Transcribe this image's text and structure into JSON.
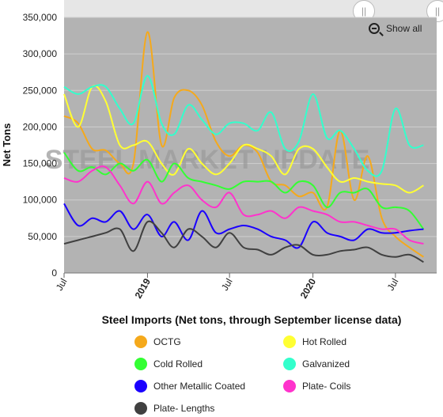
{
  "chart_data": {
    "type": "line",
    "title": "Steel Imports (Net tons, through September license data)",
    "ylabel": "Net Tons",
    "xlabel": "",
    "x_range": [
      "2018-07-01",
      "2020-09-30"
    ],
    "ylim": [
      0,
      350000
    ],
    "y_ticks": [
      0,
      50000,
      100000,
      150000,
      200000,
      250000,
      300000,
      350000
    ],
    "y_tick_labels": [
      "0",
      "50,000",
      "100,000",
      "150,000",
      "200,000",
      "250,000",
      "300,000",
      "350,000"
    ],
    "x_ticks": [
      {
        "date": "2018-07-01",
        "label": "Jul",
        "bold": false
      },
      {
        "date": "2019-01-01",
        "label": "2019",
        "bold": true
      },
      {
        "date": "2019-07-01",
        "label": "Jul",
        "bold": false
      },
      {
        "date": "2020-01-01",
        "label": "2020",
        "bold": true
      },
      {
        "date": "2020-07-01",
        "label": "Jul",
        "bold": false
      }
    ],
    "grid": true,
    "plot_background": "#b3b3b3",
    "watermark": "STEEL MARKET UPDATE",
    "legend_position": "bottom",
    "x": [
      "2018-07-01",
      "2018-08-01",
      "2018-09-01",
      "2018-10-01",
      "2018-11-01",
      "2018-12-01",
      "2019-01-01",
      "2019-02-01",
      "2019-03-01",
      "2019-04-01",
      "2019-05-01",
      "2019-06-01",
      "2019-07-01",
      "2019-08-01",
      "2019-09-01",
      "2019-10-01",
      "2019-11-01",
      "2019-12-01",
      "2020-01-01",
      "2020-02-01",
      "2020-03-01",
      "2020-04-01",
      "2020-05-01",
      "2020-06-01",
      "2020-07-01",
      "2020-08-01",
      "2020-09-01"
    ],
    "series": [
      {
        "name": "OCTG",
        "color": "#f5a91b",
        "values": [
          215000,
          205000,
          170000,
          168000,
          150000,
          150000,
          330000,
          175000,
          240000,
          250000,
          230000,
          180000,
          160000,
          175000,
          165000,
          125000,
          120000,
          105000,
          110000,
          90000,
          195000,
          100000,
          160000,
          75000,
          50000,
          35000,
          22000
        ]
      },
      {
        "name": "Hot Rolled",
        "color": "#ffff33",
        "values": [
          245000,
          200000,
          255000,
          235000,
          175000,
          175000,
          180000,
          150000,
          135000,
          170000,
          150000,
          135000,
          150000,
          175000,
          170000,
          160000,
          135000,
          170000,
          170000,
          145000,
          125000,
          130000,
          125000,
          122000,
          120000,
          110000,
          120000
        ]
      },
      {
        "name": "Cold Rolled",
        "color": "#33ff33",
        "values": [
          165000,
          140000,
          145000,
          135000,
          150000,
          140000,
          155000,
          125000,
          150000,
          130000,
          125000,
          120000,
          115000,
          125000,
          125000,
          125000,
          110000,
          125000,
          120000,
          90000,
          110000,
          110000,
          115000,
          90000,
          90000,
          85000,
          60000
        ]
      },
      {
        "name": "Galvanized",
        "color": "#33ffcc",
        "values": [
          255000,
          245000,
          255000,
          255000,
          225000,
          205000,
          270000,
          205000,
          190000,
          230000,
          210000,
          190000,
          205000,
          205000,
          195000,
          220000,
          170000,
          180000,
          245000,
          185000,
          195000,
          170000,
          140000,
          140000,
          225000,
          175000,
          175000
        ]
      },
      {
        "name": "Other Metallic Coated",
        "color": "#1a00ff",
        "values": [
          95000,
          65000,
          75000,
          70000,
          85000,
          60000,
          80000,
          50000,
          70000,
          45000,
          85000,
          55000,
          60000,
          65000,
          60000,
          50000,
          45000,
          35000,
          70000,
          55000,
          50000,
          45000,
          60000,
          55000,
          55000,
          58000,
          60000
        ]
      },
      {
        "name": "Plate- Coils",
        "color": "#ff33cc",
        "values": [
          130000,
          125000,
          140000,
          145000,
          120000,
          95000,
          125000,
          95000,
          110000,
          120000,
          100000,
          90000,
          110000,
          80000,
          80000,
          85000,
          75000,
          90000,
          85000,
          80000,
          70000,
          70000,
          65000,
          60000,
          60000,
          45000,
          40000
        ]
      },
      {
        "name": "Plate- Lengths",
        "color": "#404040",
        "values": [
          40000,
          45000,
          50000,
          55000,
          60000,
          30000,
          70000,
          55000,
          35000,
          60000,
          50000,
          35000,
          55000,
          35000,
          32000,
          25000,
          35000,
          38000,
          25000,
          25000,
          30000,
          32000,
          35000,
          25000,
          22000,
          25000,
          15000
        ]
      }
    ]
  },
  "controls": {
    "show_all_label": "Show all",
    "navigator_handle_left": "||",
    "navigator_handle_right": "||"
  }
}
